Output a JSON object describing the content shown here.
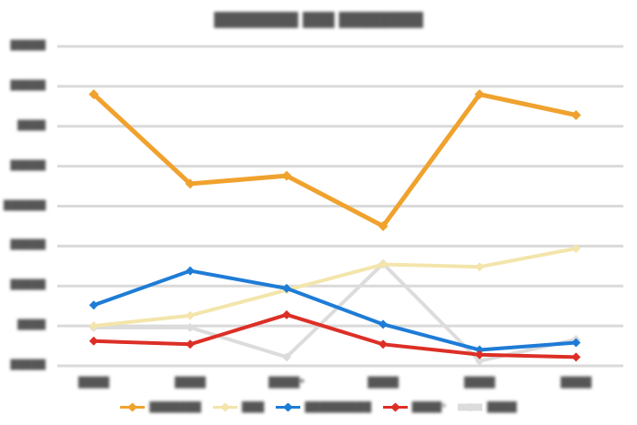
{
  "title": {
    "text": "████████ ███ ████████"
  },
  "text_legibility": "all text in source screenshot is blurred/illegible; labels stored as redacted blocks",
  "colors": {
    "background": "#FFFFFF",
    "gridline": "#DADADA",
    "text": "#565656",
    "orange": "#F0A22E",
    "cream": "#F3E5AB",
    "blue": "#1E7CD6",
    "red": "#DC2F26",
    "gray": "#DCDCDC"
  },
  "chart_data": {
    "type": "line",
    "marker": "diamond",
    "grid": true,
    "legend_position": "bottom",
    "x_labels": [
      "████",
      "████",
      "████*",
      "████",
      "████",
      "████"
    ],
    "y_tick_labels_top_to_bottom": [
      "█████",
      "█████",
      "████",
      "█████",
      "██████",
      "█████",
      "█████",
      "████",
      "█████"
    ],
    "ylim": [
      0,
      40
    ],
    "y_step": 5,
    "series": [
      {
        "name": "███████",
        "color": "#F0A22E",
        "values": [
          34.0,
          22.8,
          23.8,
          17.5,
          34.0,
          31.4
        ]
      },
      {
        "name": "███",
        "color": "#F3E5AB",
        "values": [
          5.0,
          6.3,
          9.5,
          12.7,
          12.4,
          14.7
        ]
      },
      {
        "name": "█████████",
        "color": "#1E7CD6",
        "values": [
          7.6,
          11.9,
          9.7,
          5.2,
          2.0,
          2.9
        ]
      },
      {
        "name": "████*",
        "color": "#DC2F26",
        "values": [
          3.1,
          2.7,
          6.4,
          2.7,
          1.4,
          1.1
        ]
      },
      {
        "name": "████",
        "color": "#DCDCDC",
        "values": [
          4.8,
          4.8,
          1.1,
          12.8,
          0.6,
          3.3
        ]
      }
    ],
    "draw_order_bottom_to_top": [
      4,
      1,
      2,
      3,
      0
    ]
  }
}
